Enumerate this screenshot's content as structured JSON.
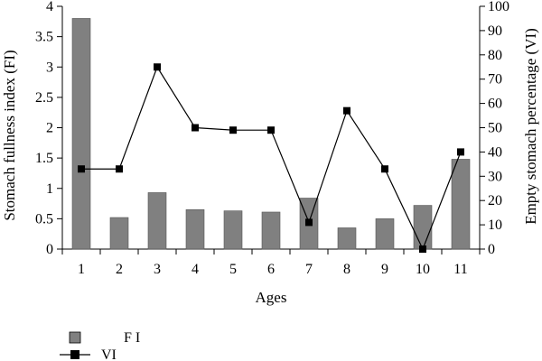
{
  "chart_data": {
    "type": "bar",
    "categories": [
      "1",
      "2",
      "3",
      "4",
      "5",
      "6",
      "7",
      "8",
      "9",
      "10",
      "11"
    ],
    "xlabel": "Ages",
    "ylabel_left": "Stomach fullness index (FI)",
    "ylabel_right": "Empty stomach percentage  (VI)",
    "ylim_left": [
      0,
      4
    ],
    "ylim_right": [
      0,
      100
    ],
    "yticks_left": [
      "0",
      "0.5",
      "1",
      "1.5",
      "2",
      "2.5",
      "3",
      "3.5",
      "4"
    ],
    "yticks_right": [
      "0",
      "10",
      "20",
      "30",
      "40",
      "50",
      "60",
      "70",
      "80",
      "90",
      "100"
    ],
    "grid": false,
    "legend_position": "bottom-left",
    "series": [
      {
        "name": "F I",
        "kind": "bar",
        "axis": "left",
        "color": "#808080",
        "values": [
          3.8,
          0.52,
          0.93,
          0.65,
          0.63,
          0.61,
          0.84,
          0.35,
          0.5,
          0.72,
          1.48
        ]
      },
      {
        "name": "VI",
        "kind": "line",
        "axis": "right",
        "color": "#000000",
        "values": [
          33,
          33,
          75,
          50,
          49,
          49,
          11,
          57,
          33,
          0,
          40
        ]
      }
    ]
  }
}
